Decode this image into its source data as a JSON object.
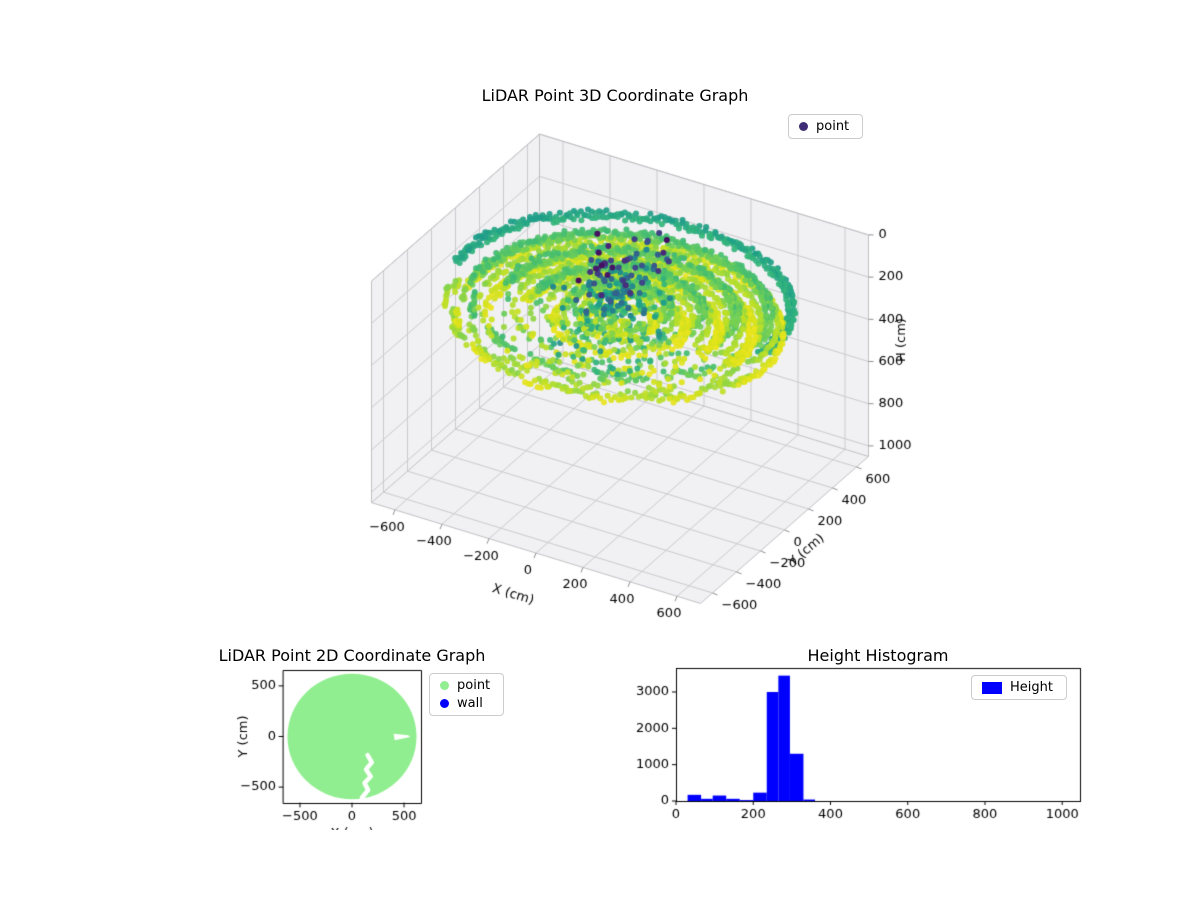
{
  "chart_data": [
    {
      "id": "lidar_point_3d",
      "type": "scatter3d",
      "title": "LiDAR Point 3D Coordinate Graph",
      "xlabel": "X (cm)",
      "ylabel": "Y (cm)",
      "zlabel": "H (cm)",
      "xlim": [
        -700,
        700
      ],
      "ylim": [
        -700,
        700
      ],
      "zlim": [
        0,
        1050
      ],
      "z_inverted": true,
      "xticks": [
        -600,
        -400,
        -200,
        0,
        200,
        400,
        600
      ],
      "yticks": [
        -600,
        -400,
        -200,
        0,
        200,
        400,
        600
      ],
      "zticks": [
        0,
        200,
        400,
        600,
        800,
        1000
      ],
      "view": {
        "elev": 30,
        "azim": -60
      },
      "colormap": "viridis",
      "color_by": "H",
      "color_domain": [
        0,
        340
      ],
      "legend": [
        {
          "label": "point",
          "marker_color": "#3e2d75"
        }
      ],
      "point_cloud": {
        "seed": 42,
        "marker_radius_px": 3,
        "rings": {
          "count": 26,
          "r_outer": 660,
          "r_inner": 130,
          "spacing_cm": 14,
          "rim_rings": 2,
          "rim_height_cm": 185,
          "swirl_height_base_cm": 265,
          "swirl_height_wave_cm": 45,
          "height_noise_cm": 18,
          "front_gap_r_min": 260,
          "front_gap_r_max": 550
        },
        "cluster": {
          "n": 260,
          "center": [
            0,
            -40
          ],
          "sigma": [
            70,
            150
          ],
          "h_range": [
            5,
            300
          ]
        },
        "scattered": {
          "n": 80,
          "x_range": [
            -60,
            320
          ],
          "y_range": [
            -560,
            -120
          ],
          "h_range": [
            150,
            270
          ]
        }
      }
    },
    {
      "id": "lidar_point_2d",
      "type": "scatter",
      "title": "LiDAR Point 2D Coordinate Graph",
      "xlabel": "X (cm)",
      "ylabel": "Y (cm)",
      "xlim": [
        -663,
        663
      ],
      "ylim": [
        -657,
        657
      ],
      "xticks": [
        -500,
        0,
        500
      ],
      "yticks": [
        -500,
        0,
        500
      ],
      "legend": [
        {
          "label": "point",
          "color": "#90ee90"
        },
        {
          "label": "wall",
          "color": "#0000ff"
        }
      ],
      "disc": {
        "center": [
          0,
          0
        ],
        "radius_cm": 620,
        "color": "#90ee90"
      },
      "white_notch_polygon": [
        [
          400,
          28
        ],
        [
          540,
          12
        ],
        [
          560,
          -6
        ],
        [
          410,
          -38
        ]
      ],
      "white_gap_polyline": [
        [
          150,
          -185
        ],
        [
          190,
          -255
        ],
        [
          135,
          -325
        ],
        [
          180,
          -395
        ],
        [
          120,
          -460
        ],
        [
          155,
          -530
        ],
        [
          95,
          -605
        ]
      ]
    },
    {
      "id": "height_histogram",
      "type": "bar",
      "title": "Height Histogram",
      "xlim": [
        0,
        1046
      ],
      "ylim": [
        0,
        3660
      ],
      "xticks": [
        0,
        200,
        400,
        600,
        800,
        1000
      ],
      "yticks": [
        0,
        1000,
        2000,
        3000
      ],
      "bar_color": "#0000ff",
      "legend": [
        {
          "label": "Height",
          "color": "#0000ff"
        }
      ],
      "bars": [
        {
          "x0": 30,
          "x1": 65,
          "count": 170
        },
        {
          "x0": 65,
          "x1": 95,
          "count": 60
        },
        {
          "x0": 95,
          "x1": 130,
          "count": 150
        },
        {
          "x0": 130,
          "x1": 165,
          "count": 60
        },
        {
          "x0": 165,
          "x1": 200,
          "count": 25
        },
        {
          "x0": 200,
          "x1": 235,
          "count": 230
        },
        {
          "x0": 235,
          "x1": 265,
          "count": 3000
        },
        {
          "x0": 265,
          "x1": 295,
          "count": 3450
        },
        {
          "x0": 295,
          "x1": 330,
          "count": 1300
        },
        {
          "x0": 330,
          "x1": 360,
          "count": 40
        }
      ]
    }
  ]
}
